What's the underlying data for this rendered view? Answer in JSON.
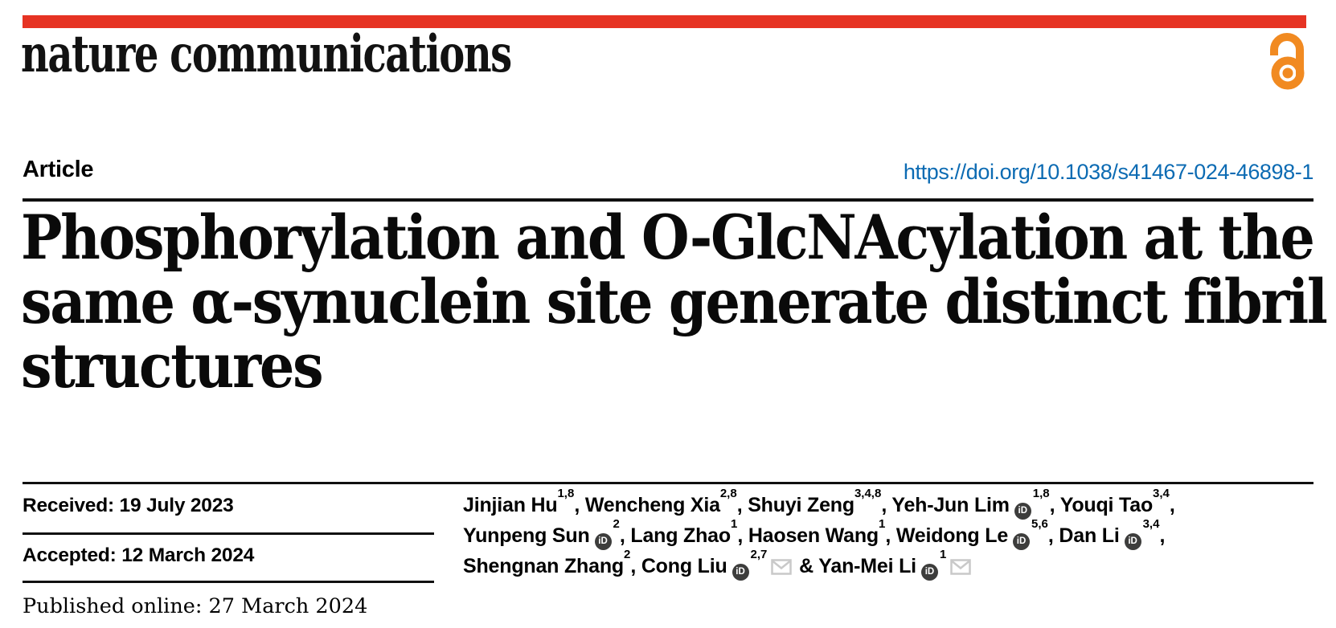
{
  "colors": {
    "brand_red": "#e63323",
    "link_blue": "#0c6bb3",
    "open_access_orange": "#f18a21",
    "orcid_gray": "#3d3d3c",
    "envelope_gray": "#c9c9c9",
    "text_black": "#000000"
  },
  "masthead": {
    "journal_logo": "nature communications",
    "open_access_icon": "open-lock-icon"
  },
  "article_header": {
    "type_label": "Article",
    "doi_link": "https://doi.org/10.1038/s41467-024-46898-1"
  },
  "title": {
    "full": "Phosphorylation and O-GlcNAcylation at the same α-synuclein site generate distinct fibril structures",
    "lines": [
      "Phosphorylation and O-GlcNAcylation at the",
      "same α-synuclein site generate distinct fibril",
      "structures"
    ]
  },
  "history": {
    "received": "Received: 19 July 2023",
    "accepted": "Accepted: 12 March 2024",
    "published": "Published online: 27 March 2024"
  },
  "authors": {
    "orcid_icon_label": "iD",
    "lines": [
      [
        {
          "name": "Jinjian Hu",
          "sup": "1,8",
          "orcid": false,
          "email": false,
          "sep": ", "
        },
        {
          "name": "Wencheng Xia",
          "sup": "2,8",
          "orcid": false,
          "email": false,
          "sep": ", "
        },
        {
          "name": "Shuyi Zeng",
          "sup": "3,4,8",
          "orcid": false,
          "email": false,
          "sep": ", "
        },
        {
          "name": "Yeh-Jun Lim",
          "sup": "1,8",
          "orcid": true,
          "email": false,
          "sep": ", "
        },
        {
          "name": "Youqi Tao",
          "sup": "3,4",
          "orcid": false,
          "email": false,
          "sep": ","
        }
      ],
      [
        {
          "name": "Yunpeng Sun",
          "sup": "2",
          "orcid": true,
          "email": false,
          "sep": ", "
        },
        {
          "name": "Lang Zhao",
          "sup": "1",
          "orcid": false,
          "email": false,
          "sep": ", "
        },
        {
          "name": "Haosen Wang",
          "sup": "1",
          "orcid": false,
          "email": false,
          "sep": ", "
        },
        {
          "name": "Weidong Le",
          "sup": "5,6",
          "orcid": true,
          "email": false,
          "sep": ", "
        },
        {
          "name": "Dan Li",
          "sup": "3,4",
          "orcid": true,
          "email": false,
          "sep": ","
        }
      ],
      [
        {
          "name": "Shengnan Zhang",
          "sup": "2",
          "orcid": false,
          "email": false,
          "sep": ", "
        },
        {
          "name": "Cong Liu",
          "sup": "2,7",
          "orcid": true,
          "email": true,
          "sep": " & "
        },
        {
          "name": "Yan-Mei Li",
          "sup": "1",
          "orcid": true,
          "email": true,
          "sep": ""
        }
      ]
    ]
  }
}
